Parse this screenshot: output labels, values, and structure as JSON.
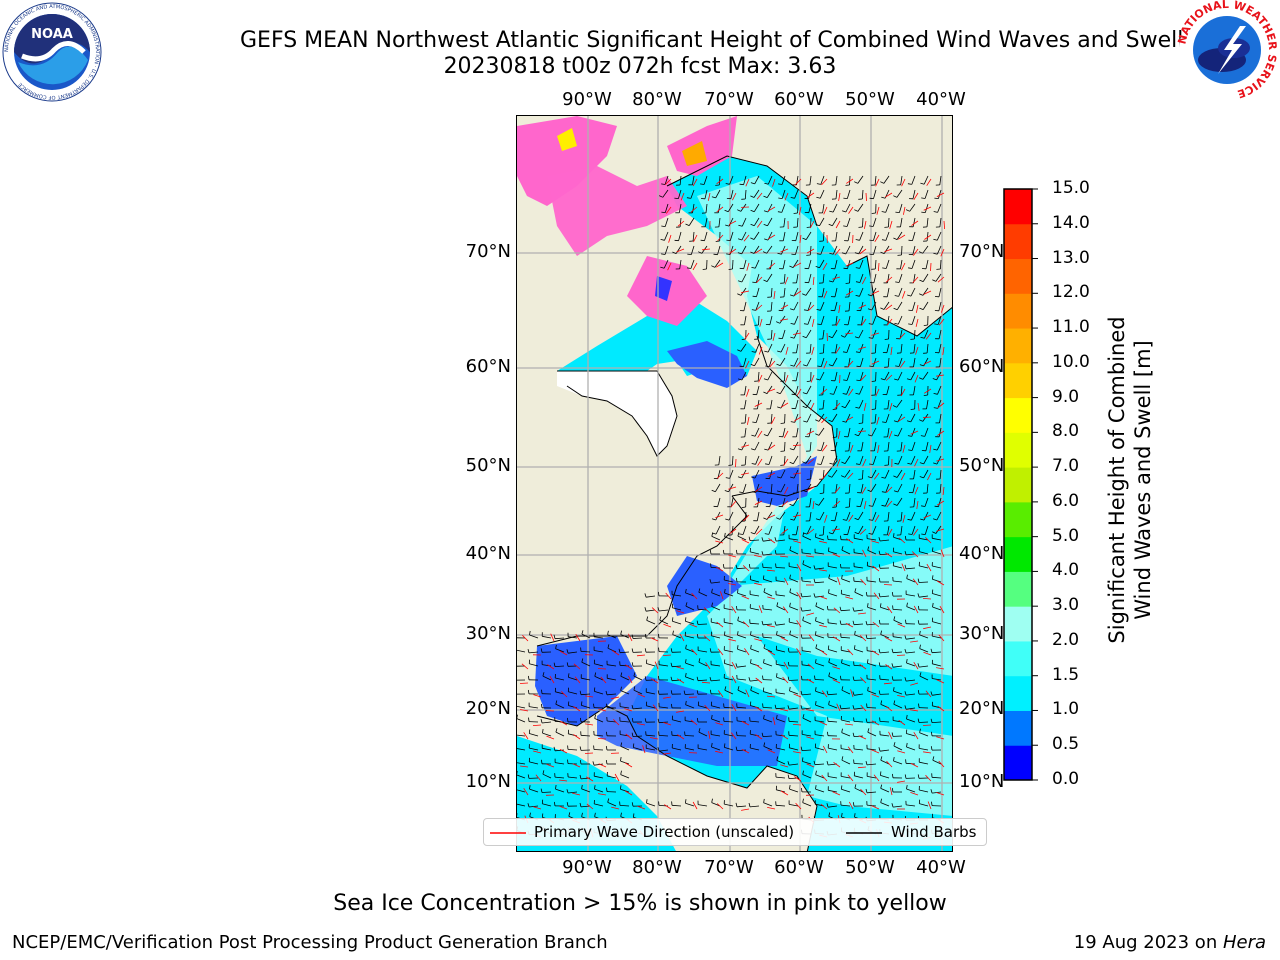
{
  "header": {
    "title_line1": "GEFS MEAN Northwest Atlantic Significant Height of Combined Wind Waves and Swell",
    "title_line2": "20230818 t00z 072h fcst   Max: 3.63"
  },
  "logos": {
    "noaa_text": "NOAA",
    "noaa_ring_text": "NATIONAL OCEANIC AND ATMOSPHERIC ADMINISTRATION · U.S. DEPARTMENT OF COMMERCE",
    "nws_ring_text": "NATIONAL WEATHER SERVICE"
  },
  "map": {
    "lon_ticks": [
      "90°W",
      "80°W",
      "70°W",
      "60°W",
      "50°W",
      "40°W"
    ],
    "lat_ticks": [
      "70°N",
      "60°N",
      "50°N",
      "40°N",
      "30°N",
      "20°N",
      "10°N"
    ],
    "colors": {
      "land": "#efedda",
      "ocean_low": "#00e8ff",
      "ocean_mid": "#a8fff6",
      "ocean_blue": "#2a60ff",
      "ice_pink": "#ff66cc",
      "ice_yellow": "#ffee00",
      "arrow": "#ff0000",
      "barb": "#000000"
    }
  },
  "legend": {
    "primary_wave": "Primary Wave Direction (unscaled)",
    "wind_barbs": "Wind Barbs"
  },
  "colorbar": {
    "label_line1": "Significant Height of Combined",
    "label_line2": "Wind Waves and Swell [m]",
    "ticks": [
      "0.0",
      "0.5",
      "1.0",
      "1.5",
      "2.0",
      "3.0",
      "4.0",
      "5.0",
      "6.0",
      "7.0",
      "8.0",
      "9.0",
      "10.0",
      "11.0",
      "12.0",
      "13.0",
      "14.0",
      "15.0"
    ],
    "colors": [
      "#0000ff",
      "#0078ff",
      "#00f0ff",
      "#40fff8",
      "#9ffff2",
      "#55ff80",
      "#00e800",
      "#59ed00",
      "#c0f000",
      "#e0ff00",
      "#ffff00",
      "#ffd000",
      "#ffb000",
      "#ff8c00",
      "#ff6400",
      "#ff3c00",
      "#ff0000"
    ]
  },
  "notes": {
    "sea_ice": "Sea Ice Concentration > 15% is shown in pink to yellow",
    "footer_left": "NCEP/EMC/Verification Post Processing Product Generation Branch",
    "footer_right_prefix": "19 Aug 2023 on ",
    "footer_right_host": "Hera"
  }
}
